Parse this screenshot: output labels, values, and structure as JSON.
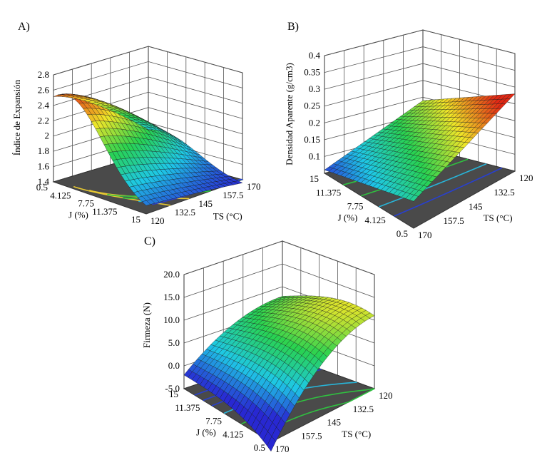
{
  "chart_data": [
    {
      "type": "surface3d",
      "panel_label": "A)",
      "zlabel": "Índice de Expansión",
      "z_ticks": [
        "1.4",
        "1.6",
        "1.8",
        "2",
        "2.2",
        "2.4",
        "2.6",
        "2.8"
      ],
      "zlim": [
        1.4,
        2.8
      ],
      "ts_label": "TS (°C)",
      "ts_ticks": [
        "120",
        "132.5",
        "145",
        "157.5",
        "170"
      ],
      "j_label": "J (%)",
      "j_ticks": [
        "0.5",
        "4.125",
        "7.75",
        "11.375",
        "15"
      ],
      "surface_range": [
        1.35,
        2.65
      ],
      "contour_floor": true
    },
    {
      "type": "surface3d",
      "panel_label": "B)",
      "zlabel": "Densidad Aparente (g/cm3)",
      "z_ticks": [
        "0.1",
        "0.15",
        "0.2",
        "0.25",
        "0.3",
        "0.35",
        "0.4"
      ],
      "zlim": [
        0.05,
        0.4
      ],
      "ts_label": "TS (°C)",
      "ts_ticks": [
        "120",
        "132.5",
        "145",
        "157.5",
        "170"
      ],
      "j_label": "J (%)",
      "j_ticks": [
        "15",
        "11.375",
        "7.75",
        "4.125",
        "0.5"
      ],
      "surface_range": [
        0.05,
        0.26
      ],
      "contour_floor": true
    },
    {
      "type": "surface3d",
      "panel_label": "C)",
      "zlabel": "Firmeza (N)",
      "z_ticks": [
        "-5.0",
        "0.0",
        "5.0",
        "10.0",
        "15.0",
        "20.0"
      ],
      "zlim": [
        -5,
        20
      ],
      "ts_label": "TS (°C)",
      "ts_ticks": [
        "120",
        "132.5",
        "145",
        "157.5",
        "170"
      ],
      "j_label": "J (%)",
      "j_ticks": [
        "15",
        "11.375",
        "7.75",
        "4.125",
        "0.5"
      ],
      "surface_range": [
        -2,
        17
      ],
      "contour_floor": true
    }
  ]
}
